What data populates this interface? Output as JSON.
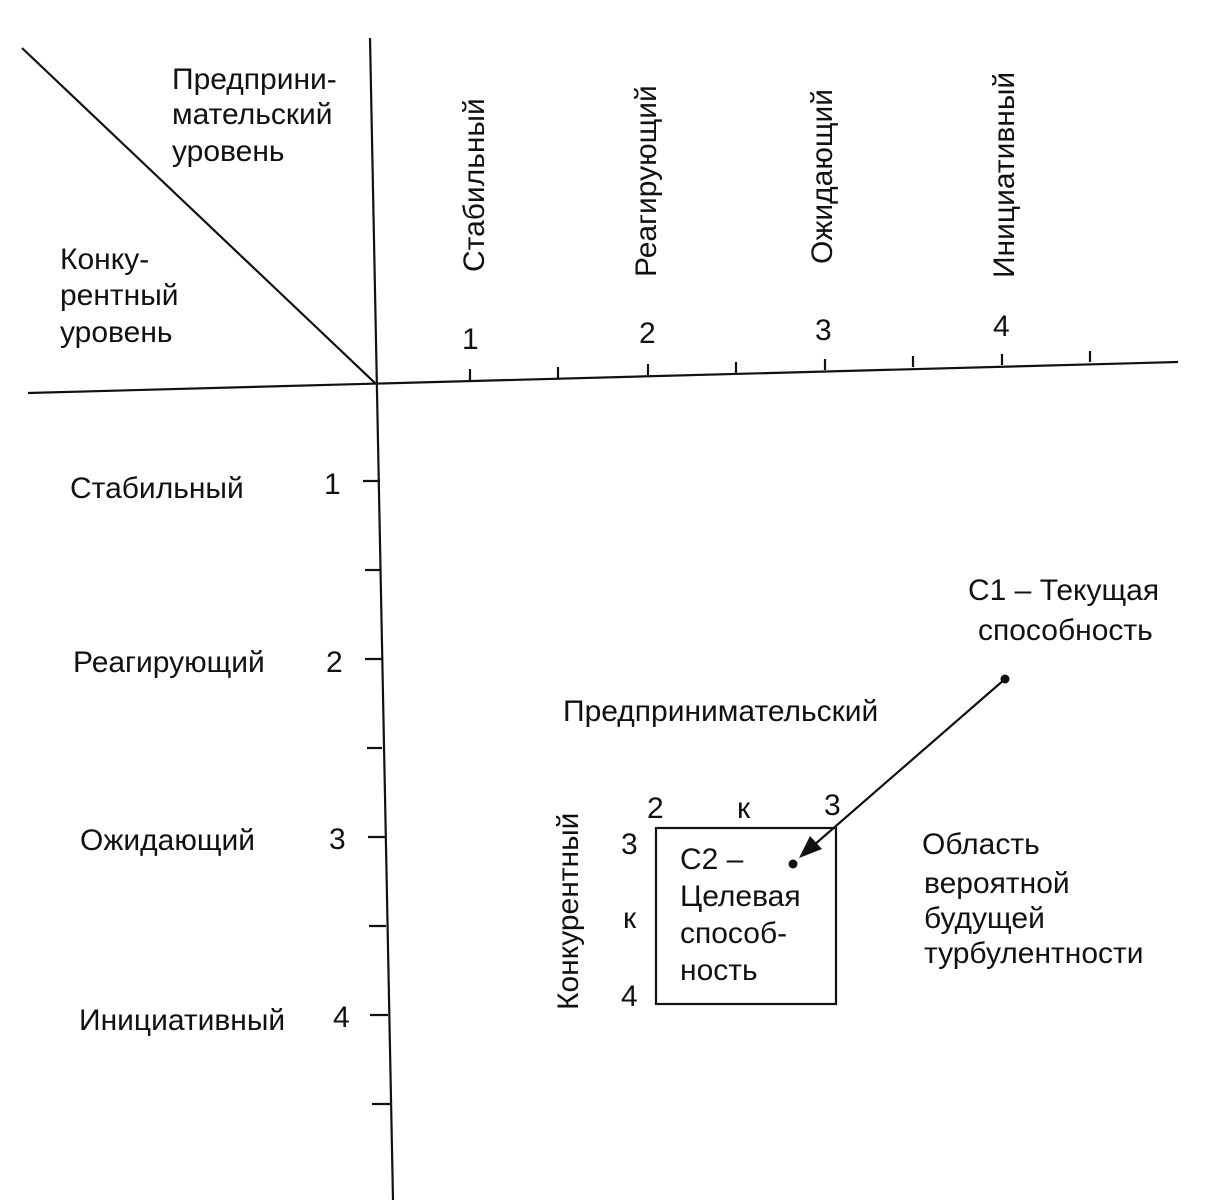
{
  "corner": {
    "entrepreneurial_lines": [
      "Предприни-",
      "мательский",
      "уровень"
    ],
    "competitive_lines": [
      "Конку-",
      "рентный",
      "уровень"
    ]
  },
  "top_axis": {
    "labels": [
      "Стабильный",
      "Реагирующий",
      "Ожидающий",
      "Инициативный"
    ],
    "numbers": [
      "1",
      "2",
      "3",
      "4"
    ]
  },
  "left_axis": {
    "labels": [
      "Стабильный",
      "Реагирующий",
      "Ожидающий",
      "Инициативный"
    ],
    "numbers": [
      "1",
      "2",
      "3",
      "4"
    ]
  },
  "c1": {
    "lines": [
      "С1 – Текущая",
      "способность"
    ]
  },
  "target_box": {
    "top_label": "Предпринимательский",
    "side_label": "Конкурентный",
    "top_left": "2",
    "top_mid": "к",
    "top_right": "3",
    "side_top": "3",
    "side_mid": "к",
    "side_bottom": "4",
    "c2_lines": [
      "С2 –",
      "Целевая",
      "способ-",
      "ность"
    ]
  },
  "region": {
    "lines": [
      "Область",
      "вероятной",
      "будущей",
      "турбулентности"
    ]
  }
}
